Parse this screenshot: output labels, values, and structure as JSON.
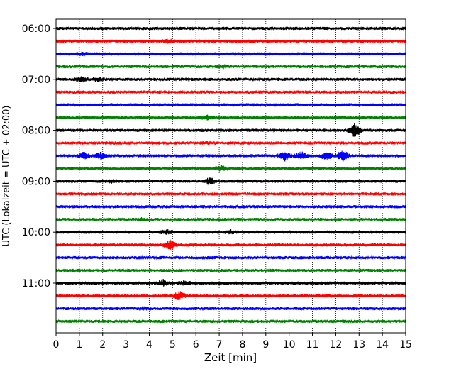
{
  "chart_data": {
    "type": "line",
    "title": "",
    "xlabel": "Zeit  [min]",
    "ylabel": "UTC (Lokalzeit = UTC + 02:00)",
    "xlim": [
      0,
      15
    ],
    "x_ticks": [
      "0",
      "1",
      "2",
      "3",
      "4",
      "5",
      "6",
      "7",
      "8",
      "9",
      "10",
      "11",
      "12",
      "13",
      "14",
      "15"
    ],
    "y_ticks": [
      "06:00",
      "07:00",
      "08:00",
      "09:00",
      "10:00",
      "11:00"
    ],
    "y_tick_rows": [
      0,
      4,
      8,
      12,
      16,
      20
    ],
    "grid": "vertical dotted",
    "legend": "none",
    "row_interval_min": 15,
    "row_start": "06:00",
    "row_colors": [
      "#000000",
      "#ff0000",
      "#0000ff",
      "#008000"
    ],
    "rows": [
      {
        "start": "06:00",
        "events": []
      },
      {
        "start": "06:15",
        "events": [
          {
            "t": 4.8,
            "amp": 1.4
          }
        ]
      },
      {
        "start": "06:30",
        "events": [
          {
            "t": 1.2,
            "amp": 1.3
          }
        ]
      },
      {
        "start": "06:45",
        "events": [
          {
            "t": 7.2,
            "amp": 1.3
          }
        ]
      },
      {
        "start": "07:00",
        "events": [
          {
            "t": 1.1,
            "amp": 1.6
          },
          {
            "t": 1.8,
            "amp": 1.4
          }
        ]
      },
      {
        "start": "07:15",
        "events": []
      },
      {
        "start": "07:30",
        "events": []
      },
      {
        "start": "07:45",
        "events": [
          {
            "t": 6.5,
            "amp": 1.4
          }
        ]
      },
      {
        "start": "08:00",
        "events": [
          {
            "t": 12.8,
            "amp": 2.8
          }
        ]
      },
      {
        "start": "08:15",
        "events": [
          {
            "t": 6.5,
            "amp": 1.3
          }
        ]
      },
      {
        "start": "08:30",
        "events": [
          {
            "t": 1.2,
            "amp": 1.8
          },
          {
            "t": 1.9,
            "amp": 1.9
          },
          {
            "t": 9.8,
            "amp": 2.3
          },
          {
            "t": 10.5,
            "amp": 2.0
          },
          {
            "t": 11.6,
            "amp": 2.0
          },
          {
            "t": 12.3,
            "amp": 2.3
          }
        ]
      },
      {
        "start": "08:45",
        "events": [
          {
            "t": 7.1,
            "amp": 1.5
          }
        ]
      },
      {
        "start": "09:00",
        "events": [
          {
            "t": 2.4,
            "amp": 1.3
          },
          {
            "t": 6.6,
            "amp": 1.8
          }
        ]
      },
      {
        "start": "09:15",
        "events": []
      },
      {
        "start": "09:30",
        "events": []
      },
      {
        "start": "09:45",
        "events": [
          {
            "t": 3.7,
            "amp": 1.3
          }
        ]
      },
      {
        "start": "10:00",
        "events": [
          {
            "t": 4.7,
            "amp": 1.6
          },
          {
            "t": 7.5,
            "amp": 1.4
          }
        ]
      },
      {
        "start": "10:15",
        "events": [
          {
            "t": 4.9,
            "amp": 2.1
          }
        ]
      },
      {
        "start": "10:30",
        "events": []
      },
      {
        "start": "10:45",
        "events": []
      },
      {
        "start": "11:00",
        "events": [
          {
            "t": 4.6,
            "amp": 1.8
          },
          {
            "t": 5.5,
            "amp": 1.4
          }
        ]
      },
      {
        "start": "11:15",
        "events": [
          {
            "t": 5.3,
            "amp": 2.0
          }
        ]
      },
      {
        "start": "11:30",
        "events": [
          {
            "t": 3.8,
            "amp": 1.3
          }
        ]
      },
      {
        "start": "11:45",
        "events": []
      }
    ]
  }
}
